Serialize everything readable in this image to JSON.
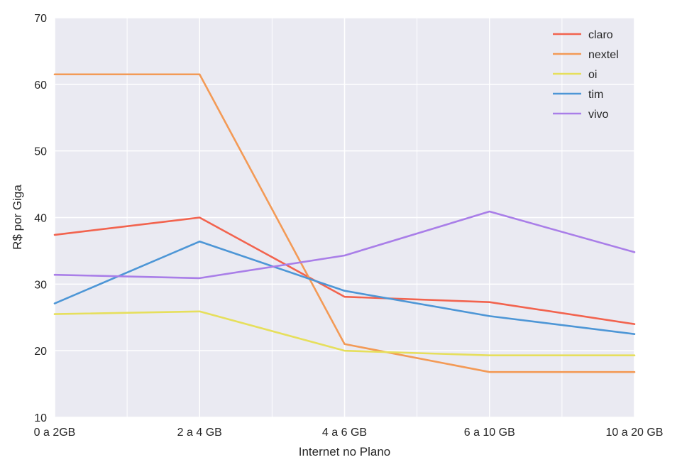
{
  "chart_data": {
    "type": "line",
    "title": "",
    "xlabel": "Internet no Plano",
    "ylabel": "R$ por Giga",
    "categories": [
      "0 a 2GB",
      "2 a 4 GB",
      "4 a 6 GB",
      "6 a 10 GB",
      "10 a 20 GB"
    ],
    "ylim": [
      10,
      70
    ],
    "yticks": [
      10,
      20,
      30,
      40,
      50,
      60,
      70
    ],
    "grid": true,
    "legend_position": "top-right",
    "series": [
      {
        "name": "claro",
        "color": "#f2634e",
        "values": [
          37.4,
          40.0,
          28.1,
          27.3,
          24.0
        ]
      },
      {
        "name": "nextel",
        "color": "#f39a56",
        "values": [
          61.5,
          61.5,
          21.0,
          16.8,
          16.8
        ]
      },
      {
        "name": "oi",
        "color": "#e6df5c",
        "values": [
          25.5,
          25.9,
          20.0,
          19.3,
          19.3
        ]
      },
      {
        "name": "tim",
        "color": "#4d96d6",
        "values": [
          27.1,
          36.4,
          29.0,
          25.2,
          22.5
        ]
      },
      {
        "name": "vivo",
        "color": "#a97ee8",
        "values": [
          31.4,
          30.9,
          34.3,
          40.9,
          34.8
        ]
      }
    ]
  }
}
